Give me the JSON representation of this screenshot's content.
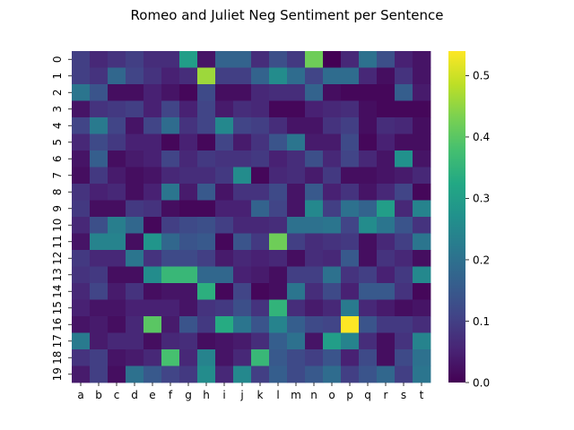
{
  "chart_data": {
    "type": "heatmap",
    "title": "Romeo and Juliet Neg Sentiment per Sentence",
    "x_categories": [
      "a",
      "b",
      "c",
      "d",
      "e",
      "f",
      "g",
      "h",
      "i",
      "j",
      "k",
      "l",
      "m",
      "n",
      "o",
      "p",
      "q",
      "r",
      "s",
      "t"
    ],
    "y_categories": [
      "0",
      "1",
      "2",
      "3",
      "4",
      "5",
      "6",
      "7",
      "8",
      "9",
      "10",
      "11",
      "12",
      "13",
      "14",
      "15",
      "16",
      "17",
      "18",
      "19"
    ],
    "colorbar": {
      "min": 0.0,
      "max": 0.54,
      "ticks": [
        "0.0",
        "0.1",
        "0.2",
        "0.3",
        "0.4",
        "0.5"
      ],
      "tick_values": [
        0.0,
        0.1,
        0.2,
        0.3,
        0.4,
        0.5
      ]
    },
    "colormap": "viridis",
    "values": [
      [
        0.1,
        0.06,
        0.08,
        0.1,
        0.07,
        0.07,
        0.3,
        0.03,
        0.17,
        0.17,
        0.07,
        0.13,
        0.09,
        0.42,
        0.0,
        0.06,
        0.2,
        0.13,
        0.05,
        0.03
      ],
      [
        0.1,
        0.08,
        0.18,
        0.11,
        0.08,
        0.05,
        0.07,
        0.46,
        0.1,
        0.1,
        0.17,
        0.26,
        0.19,
        0.11,
        0.19,
        0.19,
        0.06,
        0.02,
        0.08,
        0.03
      ],
      [
        0.21,
        0.14,
        0.02,
        0.02,
        0.05,
        0.03,
        0.01,
        0.12,
        0.02,
        0.02,
        0.06,
        0.07,
        0.07,
        0.17,
        0.02,
        0.01,
        0.01,
        0.01,
        0.16,
        0.04
      ],
      [
        0.03,
        0.08,
        0.09,
        0.1,
        0.05,
        0.11,
        0.05,
        0.11,
        0.04,
        0.07,
        0.06,
        0.01,
        0.01,
        0.05,
        0.06,
        0.07,
        0.02,
        0.01,
        0.01,
        0.01
      ],
      [
        0.11,
        0.22,
        0.11,
        0.03,
        0.11,
        0.19,
        0.08,
        0.11,
        0.25,
        0.11,
        0.1,
        0.07,
        0.03,
        0.03,
        0.08,
        0.1,
        0.02,
        0.07,
        0.06,
        0.02
      ],
      [
        0.06,
        0.12,
        0.09,
        0.05,
        0.05,
        0.01,
        0.05,
        0.01,
        0.11,
        0.04,
        0.08,
        0.14,
        0.21,
        0.04,
        0.04,
        0.12,
        0.01,
        0.05,
        0.02,
        0.02
      ],
      [
        0.03,
        0.16,
        0.02,
        0.04,
        0.05,
        0.11,
        0.06,
        0.09,
        0.08,
        0.08,
        0.09,
        0.05,
        0.07,
        0.13,
        0.06,
        0.11,
        0.06,
        0.03,
        0.27,
        0.03
      ],
      [
        0.02,
        0.09,
        0.04,
        0.02,
        0.03,
        0.06,
        0.07,
        0.07,
        0.09,
        0.26,
        0.01,
        0.06,
        0.07,
        0.04,
        0.09,
        0.02,
        0.02,
        0.03,
        0.04,
        0.06
      ],
      [
        0.08,
        0.05,
        0.06,
        0.02,
        0.05,
        0.21,
        0.04,
        0.15,
        0.03,
        0.08,
        0.08,
        0.12,
        0.03,
        0.15,
        0.05,
        0.08,
        0.03,
        0.06,
        0.11,
        0.01
      ],
      [
        0.09,
        0.02,
        0.02,
        0.09,
        0.08,
        0.02,
        0.01,
        0.01,
        0.05,
        0.05,
        0.17,
        0.11,
        0.03,
        0.25,
        0.1,
        0.2,
        0.17,
        0.3,
        0.06,
        0.24
      ],
      [
        0.06,
        0.13,
        0.23,
        0.18,
        0.01,
        0.1,
        0.12,
        0.13,
        0.1,
        0.06,
        0.06,
        0.07,
        0.2,
        0.2,
        0.21,
        0.11,
        0.26,
        0.21,
        0.14,
        0.08
      ],
      [
        0.03,
        0.24,
        0.24,
        0.02,
        0.28,
        0.18,
        0.14,
        0.15,
        0.01,
        0.14,
        0.09,
        0.42,
        0.1,
        0.07,
        0.08,
        0.09,
        0.02,
        0.06,
        0.1,
        0.21
      ],
      [
        0.09,
        0.06,
        0.06,
        0.21,
        0.08,
        0.12,
        0.12,
        0.1,
        0.04,
        0.06,
        0.05,
        0.06,
        0.02,
        0.07,
        0.06,
        0.15,
        0.02,
        0.08,
        0.06,
        0.02
      ],
      [
        0.08,
        0.09,
        0.02,
        0.02,
        0.26,
        0.36,
        0.36,
        0.18,
        0.18,
        0.05,
        0.04,
        0.02,
        0.1,
        0.1,
        0.2,
        0.08,
        0.1,
        0.05,
        0.09,
        0.25
      ],
      [
        0.06,
        0.11,
        0.04,
        0.08,
        0.02,
        0.03,
        0.03,
        0.34,
        0.01,
        0.11,
        0.01,
        0.02,
        0.21,
        0.07,
        0.12,
        0.05,
        0.15,
        0.15,
        0.08,
        0.01
      ],
      [
        0.05,
        0.03,
        0.03,
        0.05,
        0.05,
        0.05,
        0.03,
        0.08,
        0.09,
        0.13,
        0.08,
        0.35,
        0.07,
        0.04,
        0.06,
        0.22,
        0.06,
        0.04,
        0.02,
        0.03
      ],
      [
        0.03,
        0.04,
        0.02,
        0.06,
        0.4,
        0.04,
        0.14,
        0.09,
        0.33,
        0.21,
        0.14,
        0.24,
        0.16,
        0.12,
        0.11,
        0.54,
        0.14,
        0.09,
        0.09,
        0.07
      ],
      [
        0.22,
        0.04,
        0.06,
        0.06,
        0.02,
        0.06,
        0.07,
        0.02,
        0.03,
        0.04,
        0.07,
        0.16,
        0.2,
        0.03,
        0.3,
        0.24,
        0.07,
        0.02,
        0.08,
        0.24
      ],
      [
        0.08,
        0.1,
        0.03,
        0.04,
        0.06,
        0.38,
        0.06,
        0.24,
        0.03,
        0.06,
        0.36,
        0.15,
        0.12,
        0.1,
        0.14,
        0.05,
        0.12,
        0.02,
        0.12,
        0.2
      ],
      [
        0.04,
        0.1,
        0.02,
        0.2,
        0.15,
        0.11,
        0.09,
        0.26,
        0.06,
        0.25,
        0.1,
        0.16,
        0.12,
        0.15,
        0.19,
        0.1,
        0.14,
        0.18,
        0.1,
        0.21
      ]
    ]
  }
}
